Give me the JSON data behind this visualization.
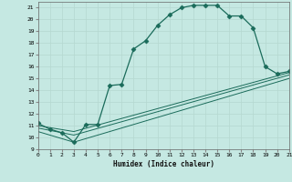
{
  "xlabel": "Humidex (Indice chaleur)",
  "xlim": [
    0,
    21
  ],
  "ylim": [
    9,
    21.5
  ],
  "xticks": [
    0,
    1,
    2,
    3,
    4,
    5,
    6,
    7,
    8,
    9,
    10,
    11,
    12,
    13,
    14,
    15,
    16,
    17,
    18,
    19,
    20,
    21
  ],
  "yticks": [
    9,
    10,
    11,
    12,
    13,
    14,
    15,
    16,
    17,
    18,
    19,
    20,
    21
  ],
  "bg_color": "#c5e8e2",
  "grid_color": "#b5d8d0",
  "line_color": "#1a6b5a",
  "line1_x": [
    0,
    1,
    2,
    3,
    4,
    5,
    6,
    7,
    8,
    9,
    10,
    11,
    12,
    13,
    14,
    15,
    16,
    17,
    18,
    19,
    20,
    21
  ],
  "line1_y": [
    11.2,
    10.7,
    10.4,
    9.6,
    11.1,
    11.1,
    14.4,
    14.5,
    17.5,
    18.2,
    19.5,
    20.4,
    21.0,
    21.2,
    21.2,
    21.2,
    20.3,
    20.3,
    19.3,
    16.0,
    15.4,
    15.6
  ],
  "line2_x": [
    0,
    3,
    21
  ],
  "line2_y": [
    11.0,
    10.5,
    15.5
  ],
  "line3_x": [
    0,
    3,
    21
  ],
  "line3_y": [
    10.8,
    10.2,
    15.3
  ],
  "line4_x": [
    0,
    3,
    21
  ],
  "line4_y": [
    10.5,
    9.6,
    15.0
  ]
}
